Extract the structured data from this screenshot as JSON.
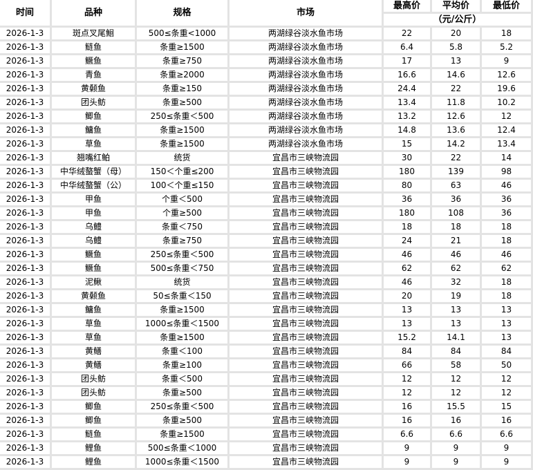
{
  "header": {
    "date": "时间",
    "variety": "品种",
    "spec": "规格",
    "market": "市场",
    "max": "最高价",
    "avg": "平均价",
    "min": "最低价",
    "unit": "（元/公斤）"
  },
  "rows": [
    [
      "2026-1-3",
      "斑点叉尾鮰",
      "500≤条重<1000",
      "两湖绿谷淡水鱼市场",
      "22",
      "20",
      "18"
    ],
    [
      "2026-1-3",
      "鲢鱼",
      "条重≥1500",
      "两湖绿谷淡水鱼市场",
      "6.4",
      "5.8",
      "5.2"
    ],
    [
      "2026-1-3",
      "鳜鱼",
      "条重≥750",
      "两湖绿谷淡水鱼市场",
      "17",
      "13",
      "9"
    ],
    [
      "2026-1-3",
      "青鱼",
      "条重≥2000",
      "两湖绿谷淡水鱼市场",
      "16.6",
      "14.6",
      "12.6"
    ],
    [
      "2026-1-3",
      "黄颡鱼",
      "条重≥150",
      "两湖绿谷淡水鱼市场",
      "24.4",
      "22",
      "19.6"
    ],
    [
      "2026-1-3",
      "团头鲂",
      "条重≥500",
      "两湖绿谷淡水鱼市场",
      "13.4",
      "11.8",
      "10.2"
    ],
    [
      "2026-1-3",
      "鲫鱼",
      "250≤条重＜500",
      "两湖绿谷淡水鱼市场",
      "13.2",
      "12.6",
      "12"
    ],
    [
      "2026-1-3",
      "鳙鱼",
      "条重≥1500",
      "两湖绿谷淡水鱼市场",
      "14.8",
      "13.6",
      "12.4"
    ],
    [
      "2026-1-3",
      "草鱼",
      "条重≥1500",
      "两湖绿谷淡水鱼市场",
      "15",
      "14.2",
      "13.4"
    ],
    [
      "2026-1-3",
      "翘嘴红鲌",
      "统货",
      "宜昌市三峡物流园",
      "30",
      "22",
      "14"
    ],
    [
      "2026-1-3",
      "中华绒螯蟹（母）",
      "150＜个重≤200",
      "宜昌市三峡物流园",
      "180",
      "139",
      "98"
    ],
    [
      "2026-1-3",
      "中华绒螯蟹（公）",
      "100＜个重≤150",
      "宜昌市三峡物流园",
      "80",
      "63",
      "46"
    ],
    [
      "2026-1-3",
      "甲鱼",
      "个重＜500",
      "宜昌市三峡物流园",
      "36",
      "36",
      "36"
    ],
    [
      "2026-1-3",
      "甲鱼",
      "个重≥500",
      "宜昌市三峡物流园",
      "180",
      "108",
      "36"
    ],
    [
      "2026-1-3",
      "乌鳢",
      "条重＜750",
      "宜昌市三峡物流园",
      "18",
      "18",
      "18"
    ],
    [
      "2026-1-3",
      "乌鳢",
      "条重≥750",
      "宜昌市三峡物流园",
      "24",
      "21",
      "18"
    ],
    [
      "2026-1-3",
      "鳜鱼",
      "250≤条重＜500",
      "宜昌市三峡物流园",
      "46",
      "46",
      "46"
    ],
    [
      "2026-1-3",
      "鳜鱼",
      "500≤条重＜750",
      "宜昌市三峡物流园",
      "62",
      "62",
      "62"
    ],
    [
      "2026-1-3",
      "泥鳅",
      "统货",
      "宜昌市三峡物流园",
      "46",
      "32",
      "18"
    ],
    [
      "2026-1-3",
      "黄颡鱼",
      "50≤条重＜150",
      "宜昌市三峡物流园",
      "20",
      "19",
      "18"
    ],
    [
      "2026-1-3",
      "鳙鱼",
      "条重≥1500",
      "宜昌市三峡物流园",
      "13",
      "13",
      "13"
    ],
    [
      "2026-1-3",
      "草鱼",
      "1000≤条重＜1500",
      "宜昌市三峡物流园",
      "13",
      "13",
      "13"
    ],
    [
      "2026-1-3",
      "草鱼",
      "条重≥1500",
      "宜昌市三峡物流园",
      "15.2",
      "14.1",
      "13"
    ],
    [
      "2026-1-3",
      "黄鳝",
      "条重＜100",
      "宜昌市三峡物流园",
      "84",
      "84",
      "84"
    ],
    [
      "2026-1-3",
      "黄鳝",
      "条重≥100",
      "宜昌市三峡物流园",
      "66",
      "58",
      "50"
    ],
    [
      "2026-1-3",
      "团头鲂",
      "条重＜500",
      "宜昌市三峡物流园",
      "12",
      "12",
      "12"
    ],
    [
      "2026-1-3",
      "团头鲂",
      "条重≥500",
      "宜昌市三峡物流园",
      "12",
      "12",
      "12"
    ],
    [
      "2026-1-3",
      "鲫鱼",
      "250≤条重＜500",
      "宜昌市三峡物流园",
      "16",
      "15.5",
      "15"
    ],
    [
      "2026-1-3",
      "鲫鱼",
      "条重≥500",
      "宜昌市三峡物流园",
      "16",
      "16",
      "16"
    ],
    [
      "2026-1-3",
      "鲢鱼",
      "条重≥1500",
      "宜昌市三峡物流园",
      "6.6",
      "6.6",
      "6.6"
    ],
    [
      "2026-1-3",
      "鲤鱼",
      "500≤条重＜1000",
      "宜昌市三峡物流园",
      "9",
      "9",
      "9"
    ],
    [
      "2026-1-3",
      "鲤鱼",
      "1000≤条重＜1500",
      "宜昌市三峡物流园",
      "9",
      "9",
      "9"
    ]
  ]
}
